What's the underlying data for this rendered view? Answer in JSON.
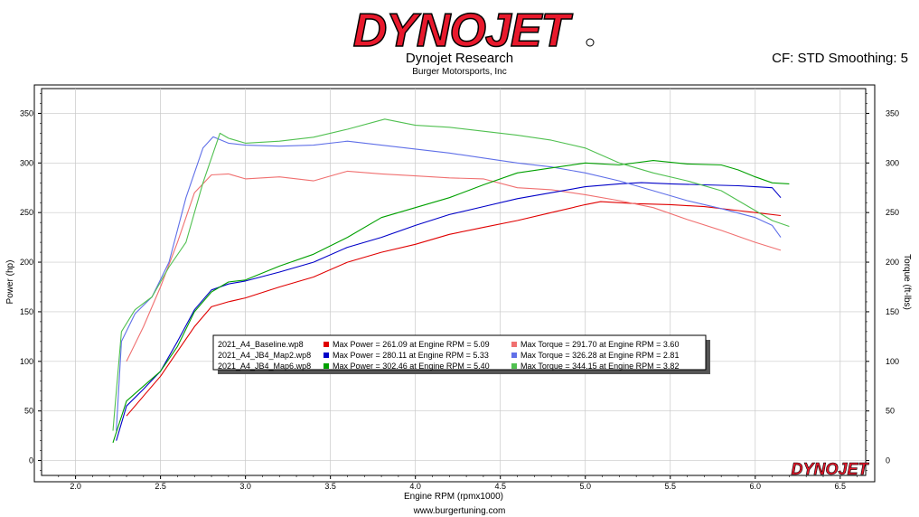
{
  "header": {
    "logo_text": "DYNOJET",
    "company": "Dynojet Research",
    "subcompany": "Burger Motorsports, Inc",
    "cf_text": "CF: STD Smoothing: 5"
  },
  "footer": {
    "url": "www.burgertuning.com"
  },
  "watermark": "DYNOJET",
  "colors": {
    "brand_red": "#e8192c",
    "baseline_power": "#e00000",
    "baseline_torque": "#f07070",
    "map2_power": "#0000c8",
    "map2_torque": "#6070e8",
    "map6_power": "#00a000",
    "map6_torque": "#50c050"
  },
  "chart_data": {
    "type": "line",
    "xlabel": "Engine RPM (rpmx1000)",
    "ylabel": "Power (hp)",
    "y2label": "Torque (ft-lbs)",
    "xlim": [
      1.8,
      6.65
    ],
    "ylim": [
      -15,
      375
    ],
    "xticks": [
      "2.0",
      "2.5",
      "3.0",
      "3.5",
      "4.0",
      "4.5",
      "5.0",
      "5.5",
      "6.0",
      "6.5"
    ],
    "yticks": [
      "0",
      "50",
      "100",
      "150",
      "200",
      "250",
      "300",
      "350"
    ],
    "grid": true,
    "legend_position": "center",
    "legend": [
      {
        "file": "2021_A4_Baseline.wp8",
        "power_text": "Max Power = 261.09 at Engine RPM = 5.09",
        "torque_text": "Max Torque = 291.70 at Engine RPM = 3.60",
        "power_color": "#e00000",
        "torque_color": "#f07070"
      },
      {
        "file": "2021_A4_JB4_Map2.wp8",
        "power_text": "Max Power = 280.11 at Engine RPM = 5.33",
        "torque_text": "Max Torque = 326.28 at Engine RPM = 2.81",
        "power_color": "#0000c8",
        "torque_color": "#6070e8"
      },
      {
        "file": "2021_A4_JB4_Map6.wp8",
        "power_text": "Max Power = 302.46 at Engine RPM = 5.40",
        "torque_text": "Max Torque = 344.15 at Engine RPM = 3.82",
        "power_color": "#00a000",
        "torque_color": "#50c050"
      }
    ],
    "series": [
      {
        "name": "2021_A4_Baseline.wp8",
        "kind": "power",
        "color": "#e00000",
        "x": [
          2.3,
          2.4,
          2.5,
          2.6,
          2.7,
          2.8,
          2.9,
          3.0,
          3.2,
          3.4,
          3.6,
          3.8,
          4.0,
          4.2,
          4.4,
          4.6,
          4.8,
          5.0,
          5.09,
          5.3,
          5.5,
          5.7,
          5.9,
          6.0,
          6.15
        ],
        "y": [
          45,
          65,
          85,
          110,
          135,
          155,
          160,
          164,
          175,
          185,
          200,
          210,
          218,
          228,
          235,
          242,
          250,
          258,
          261,
          259,
          258,
          256,
          252,
          250,
          247
        ]
      },
      {
        "name": "2021_A4_Baseline.wp8",
        "kind": "torque",
        "color": "#f07070",
        "x": [
          2.3,
          2.4,
          2.5,
          2.6,
          2.7,
          2.8,
          2.9,
          3.0,
          3.2,
          3.4,
          3.6,
          3.8,
          4.0,
          4.2,
          4.4,
          4.6,
          4.8,
          5.0,
          5.2,
          5.4,
          5.6,
          5.8,
          6.0,
          6.15
        ],
        "y": [
          100,
          135,
          175,
          220,
          270,
          288,
          289,
          284,
          286,
          282,
          291.7,
          289,
          287,
          285,
          284,
          275,
          273,
          268,
          262,
          255,
          243,
          232,
          220,
          212
        ]
      },
      {
        "name": "2021_A4_JB4_Map2.wp8",
        "kind": "power",
        "color": "#0000c8",
        "x": [
          2.24,
          2.3,
          2.4,
          2.5,
          2.6,
          2.7,
          2.8,
          2.9,
          3.0,
          3.2,
          3.4,
          3.6,
          3.8,
          4.0,
          4.2,
          4.4,
          4.6,
          4.8,
          5.0,
          5.2,
          5.33,
          5.5,
          5.7,
          5.9,
          6.0,
          6.1,
          6.15
        ],
        "y": [
          20,
          55,
          72,
          90,
          120,
          152,
          172,
          178,
          181,
          190,
          200,
          215,
          225,
          237,
          248,
          256,
          264,
          270,
          276,
          279,
          280.1,
          279,
          278,
          277,
          276,
          275,
          265
        ]
      },
      {
        "name": "2021_A4_JB4_Map2.wp8",
        "kind": "torque",
        "color": "#6070e8",
        "x": [
          2.24,
          2.27,
          2.35,
          2.45,
          2.55,
          2.65,
          2.75,
          2.81,
          2.9,
          3.0,
          3.2,
          3.4,
          3.6,
          3.8,
          4.0,
          4.2,
          4.4,
          4.6,
          4.8,
          5.0,
          5.2,
          5.4,
          5.6,
          5.8,
          6.0,
          6.1,
          6.15
        ],
        "y": [
          30,
          120,
          148,
          165,
          200,
          265,
          315,
          326.3,
          320,
          318,
          317,
          318,
          322,
          318,
          314,
          310,
          305,
          300,
          296,
          290,
          282,
          272,
          262,
          254,
          245,
          237,
          225
        ]
      },
      {
        "name": "2021_A4_JB4_Map6.wp8",
        "kind": "power",
        "color": "#00a000",
        "x": [
          2.22,
          2.3,
          2.4,
          2.5,
          2.6,
          2.7,
          2.8,
          2.9,
          3.0,
          3.2,
          3.4,
          3.6,
          3.8,
          4.0,
          4.2,
          4.4,
          4.6,
          4.8,
          5.0,
          5.2,
          5.4,
          5.6,
          5.8,
          5.9,
          6.0,
          6.1,
          6.2
        ],
        "y": [
          18,
          60,
          75,
          90,
          115,
          150,
          170,
          180,
          182,
          196,
          208,
          225,
          245,
          255,
          265,
          278,
          290,
          295,
          300,
          298,
          302.5,
          299,
          298,
          293,
          286,
          280,
          279
        ]
      },
      {
        "name": "2021_A4_JB4_Map6.wp8",
        "kind": "torque",
        "color": "#50c050",
        "x": [
          2.22,
          2.27,
          2.35,
          2.45,
          2.55,
          2.65,
          2.75,
          2.85,
          2.9,
          3.0,
          3.2,
          3.4,
          3.6,
          3.82,
          4.0,
          4.2,
          4.4,
          4.6,
          4.8,
          5.0,
          5.2,
          5.4,
          5.6,
          5.8,
          6.0,
          6.1,
          6.2
        ],
        "y": [
          30,
          130,
          152,
          165,
          195,
          220,
          280,
          330,
          325,
          320,
          322,
          326,
          334,
          344.2,
          338,
          336,
          332,
          328,
          323,
          315,
          300,
          290,
          282,
          272,
          252,
          242,
          236
        ]
      }
    ]
  }
}
